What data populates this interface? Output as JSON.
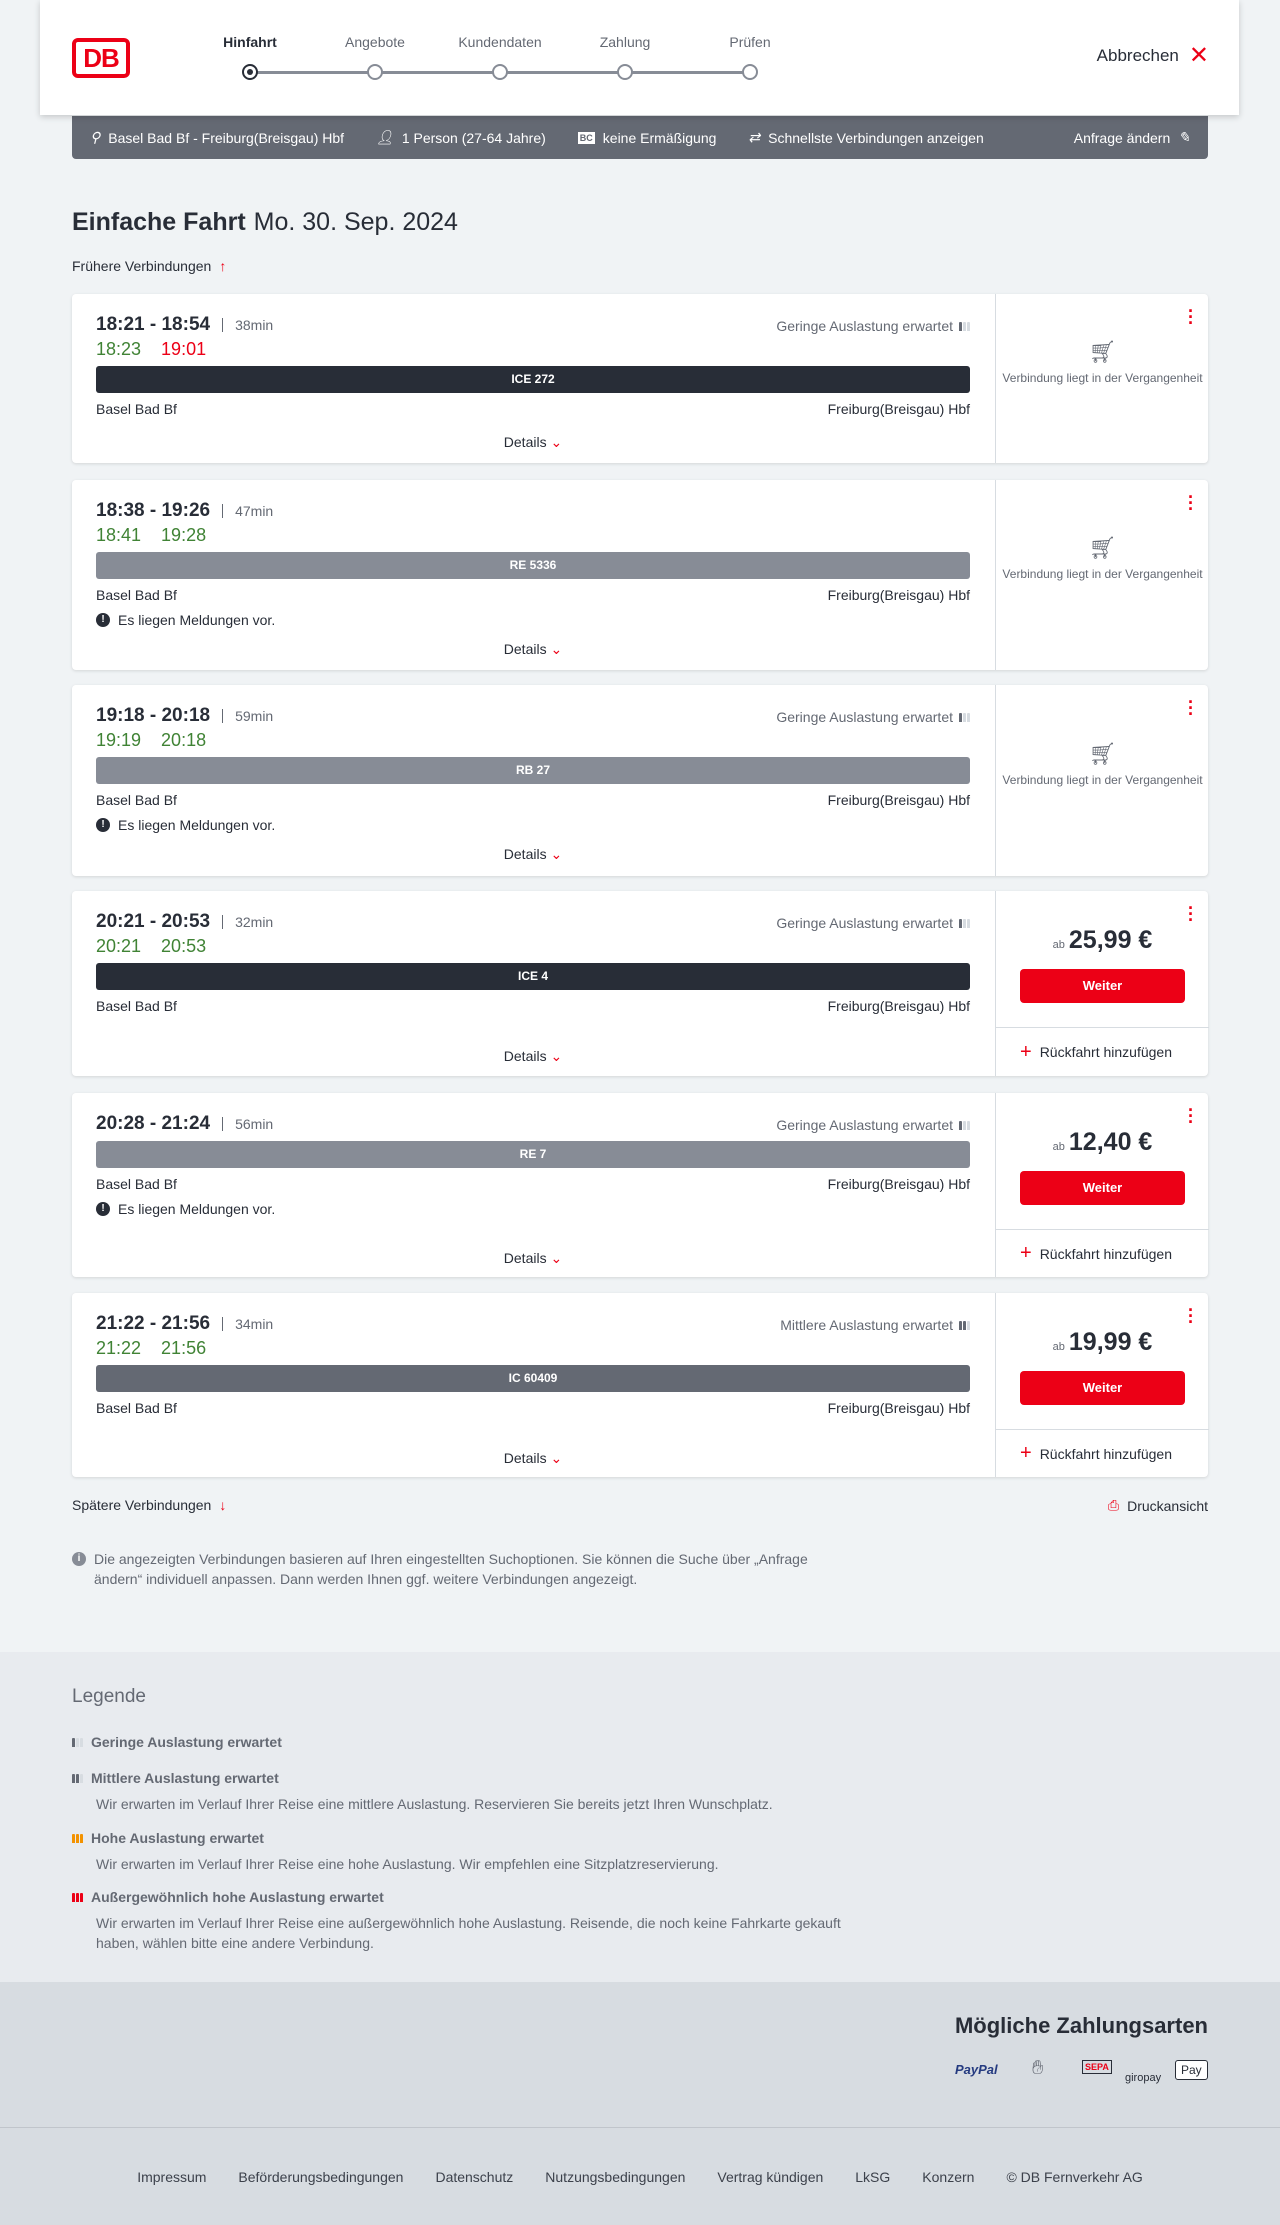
{
  "header": {
    "logo": "DB",
    "steps": [
      "Hinfahrt",
      "Angebote",
      "Kundendaten",
      "Zahlung",
      "Prüfen"
    ],
    "active_step": 0,
    "cancel": "Abbrechen"
  },
  "summary": {
    "route": "Basel Bad Bf - Freiburg(Breisgau) Hbf",
    "passengers": "1 Person (27-64 Jahre)",
    "discount_icon": "BC",
    "discount": "keine Ermäßigung",
    "fastest": "Schnellste Verbindungen anzeigen",
    "edit": "Anfrage ändern"
  },
  "title": {
    "trip": "Einfache Fahrt",
    "date": "Mo. 30. Sep. 2024"
  },
  "earlier": "Frühere Verbindungen",
  "later": "Spätere Verbindungen",
  "print": "Druckansicht",
  "details_label": "Details",
  "past_label": "Verbindung liegt in der Vergangenheit",
  "price_prefix": "ab",
  "continue_label": "Weiter",
  "return_label": "Rückfahrt hinzufügen",
  "message_label": "Es liegen Meldungen vor.",
  "connections": [
    {
      "time": "18:21 - 18:54",
      "duration": "38min",
      "rt_dep": "18:23",
      "rt_arr": "19:01",
      "rt_arr_late": true,
      "occupancy": "Geringe Auslastung erwartet",
      "train": "ICE 272",
      "train_color": "#282d37",
      "from": "Basel Bad Bf",
      "to": "Freiburg(Breisgau) Hbf",
      "message": false,
      "past": true
    },
    {
      "time": "18:38 - 19:26",
      "duration": "47min",
      "rt_dep": "18:41",
      "rt_arr": "19:28",
      "rt_arr_late": false,
      "occupancy": "",
      "train": "RE 5336",
      "train_color": "#878c96",
      "from": "Basel Bad Bf",
      "to": "Freiburg(Breisgau) Hbf",
      "message": true,
      "past": true
    },
    {
      "time": "19:18 - 20:18",
      "duration": "59min",
      "rt_dep": "19:19",
      "rt_arr": "20:18",
      "rt_arr_late": false,
      "occupancy": "Geringe Auslastung erwartet",
      "train": "RB 27",
      "train_color": "#878c96",
      "from": "Basel Bad Bf",
      "to": "Freiburg(Breisgau) Hbf",
      "message": true,
      "past": true
    },
    {
      "time": "20:21 - 20:53",
      "duration": "32min",
      "rt_dep": "20:21",
      "rt_arr": "20:53",
      "rt_arr_late": false,
      "occupancy": "Geringe Auslastung erwartet",
      "train": "ICE 4",
      "train_color": "#282d37",
      "from": "Basel Bad Bf",
      "to": "Freiburg(Breisgau) Hbf",
      "message": false,
      "past": false,
      "price": "25,99 €"
    },
    {
      "time": "20:28 - 21:24",
      "duration": "56min",
      "rt_dep": "",
      "rt_arr": "",
      "rt_arr_late": false,
      "occupancy": "Geringe Auslastung erwartet",
      "train": "RE 7",
      "train_color": "#878c96",
      "from": "Basel Bad Bf",
      "to": "Freiburg(Breisgau) Hbf",
      "message": true,
      "past": false,
      "price": "12,40 €"
    },
    {
      "time": "21:22 - 21:56",
      "duration": "34min",
      "rt_dep": "21:22",
      "rt_arr": "21:56",
      "rt_arr_late": false,
      "occupancy": "Mittlere Auslastung erwartet",
      "occupancy_level": 2,
      "train": "IC 60409",
      "train_color": "#646973",
      "from": "Basel Bad Bf",
      "to": "Freiburg(Breisgau) Hbf",
      "message": false,
      "past": false,
      "price": "19,99 €"
    }
  ],
  "info": "Die angezeigten Verbindungen basieren auf Ihren eingestellten Suchoptionen. Sie können die Suche über „Anfrage ändern“ individuell anpassen. Dann werden Ihnen ggf. weitere Verbindungen angezeigt.",
  "legend": {
    "title": "Legende",
    "items": [
      {
        "title": "Geringe Auslastung erwartet",
        "desc": "",
        "color": "#646973",
        "level": 1
      },
      {
        "title": "Mittlere Auslastung erwartet",
        "desc": "Wir erwarten im Verlauf Ihrer Reise eine mittlere Auslastung. Reservieren Sie bereits jetzt Ihren Wunschplatz.",
        "color": "#646973",
        "level": 2
      },
      {
        "title": "Hohe Auslastung erwartet",
        "desc": "Wir erwarten im Verlauf Ihrer Reise eine hohe Auslastung. Wir empfehlen eine Sitzplatzreservierung.",
        "color": "#f39200",
        "level": 3
      },
      {
        "title": "Außergewöhnlich hohe Auslastung erwartet",
        "desc": "Wir erwarten im Verlauf Ihrer Reise eine außergewöhnlich hohe Auslastung. Reisende, die noch keine Fahrkarte gekauft haben, wählen bitte eine andere Verbindung.",
        "color": "#ec0016",
        "level": 4
      }
    ]
  },
  "payment": {
    "title": "Mögliche Zahlungsarten",
    "methods": [
      "PayPal",
      "Kreditkarte",
      "SEPA",
      "giropay",
      "Pay"
    ]
  },
  "footer": [
    "Impressum",
    "Beförderungsbedingungen",
    "Datenschutz",
    "Nutzungsbedingungen",
    "Vertrag kündigen",
    "LkSG",
    "Konzern",
    "© DB Fernverkehr AG"
  ]
}
